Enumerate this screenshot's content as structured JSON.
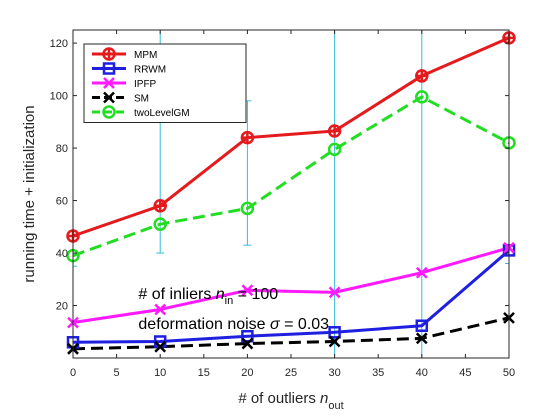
{
  "chart_data": {
    "type": "line",
    "xlabel": "# of outliers",
    "xlabel_var": "n",
    "xlabel_sub": "out",
    "ylabel": "running time + initialization",
    "xlim": [
      0,
      50
    ],
    "ylim": [
      0,
      125
    ],
    "xticks": [
      0,
      5,
      10,
      15,
      20,
      25,
      30,
      35,
      40,
      45,
      50
    ],
    "yticks": [
      20,
      40,
      60,
      80,
      100,
      120
    ],
    "grid": false,
    "legend_position": "top-left",
    "x": [
      0,
      10,
      20,
      30,
      40,
      50
    ],
    "series": [
      {
        "name": "MPM",
        "color": "#e41a1c",
        "marker": "circle-plus",
        "dash": "solid",
        "values": [
          46.5,
          58,
          84,
          86.5,
          107.5,
          122
        ]
      },
      {
        "name": "RRWM",
        "color": "#1f1fe0",
        "marker": "square",
        "dash": "solid",
        "values": [
          6,
          6.3,
          8.3,
          9.8,
          12.3,
          41
        ]
      },
      {
        "name": "IPFP",
        "color": "#ff1aff",
        "marker": "x",
        "dash": "solid",
        "values": [
          13.5,
          18.5,
          25.8,
          25,
          32.5,
          42
        ]
      },
      {
        "name": "SM",
        "color": "#000000",
        "marker": "x",
        "dash": "dashed",
        "values": [
          3.5,
          4.3,
          5.5,
          6.3,
          7.5,
          15.3
        ]
      },
      {
        "name": "twoLevelGM",
        "color": "#22dd22",
        "marker": "circle",
        "dash": "dashed",
        "values": [
          39,
          51,
          57,
          79.5,
          99.5,
          82
        ]
      }
    ],
    "error_bars": {
      "series": "twoLevelGM",
      "color": "#38bcd8",
      "low": [
        35,
        40,
        43,
        0,
        0,
        36
      ],
      "high": [
        39,
        160,
        98,
        160,
        160,
        160
      ]
    },
    "annotations": [
      {
        "prefix": "# of inliers ",
        "var": "n",
        "sub": "in",
        "suffix": " = 100",
        "at_x": 7.5,
        "at_y": 22.5
      },
      {
        "prefix": "deformation noise ",
        "var": "σ",
        "sub": "",
        "suffix": " = 0.03",
        "at_x": 7.5,
        "at_y": 11
      }
    ]
  }
}
